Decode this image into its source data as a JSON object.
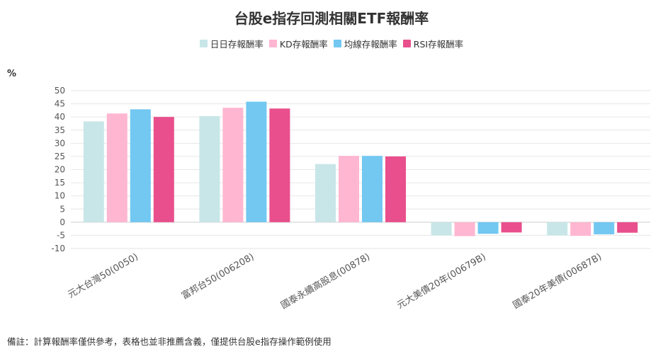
{
  "chart_data": {
    "type": "bar",
    "title": "台股e指存回測相關ETF報酬率",
    "ylabel": "%",
    "ylim": [
      -10,
      50
    ],
    "yticks": [
      -10,
      -5,
      0,
      5,
      10,
      15,
      20,
      25,
      30,
      35,
      40,
      45,
      50
    ],
    "categories": [
      "元大台灣50(0050)",
      "富邦台50(006208)",
      "國泰永續高股息(00878)",
      "元大美債20年(00679B)",
      "國泰20年美債(00687B)"
    ],
    "series": [
      {
        "name": "日日存報酬率",
        "color": "#c8e6e8",
        "values": [
          38.3,
          40.3,
          22.1,
          -5.0,
          -5.0
        ]
      },
      {
        "name": "KD存報酬率",
        "color": "#ffb6d0",
        "values": [
          41.3,
          43.5,
          25.2,
          -5.3,
          -5.2
        ]
      },
      {
        "name": "均線存報酬率",
        "color": "#72c8f1",
        "values": [
          42.9,
          45.8,
          25.2,
          -4.4,
          -4.6
        ]
      },
      {
        "name": "RSI存報酬率",
        "color": "#e94f8c",
        "values": [
          40.0,
          43.2,
          25.0,
          -3.9,
          -4.0
        ]
      }
    ],
    "footnote": "備註：計算報酬率僅供參考，表格也並非推薦含義，僅提供台股e指存操作範例使用"
  }
}
